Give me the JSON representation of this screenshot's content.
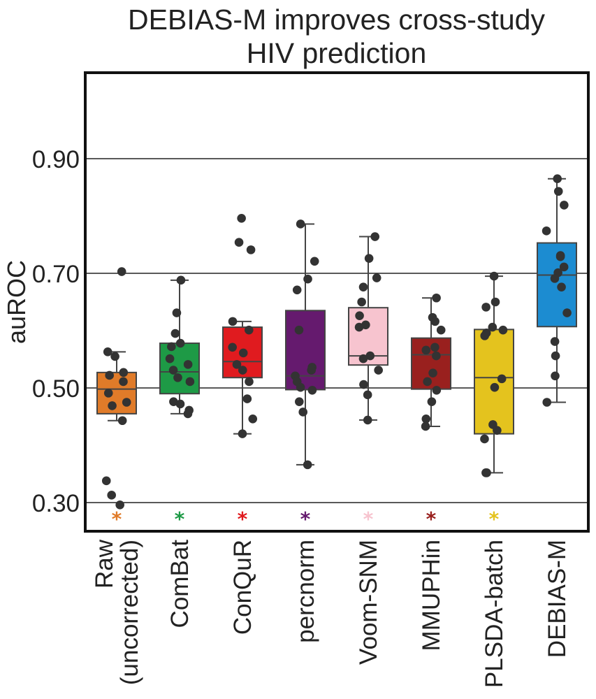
{
  "title_lines": [
    "DEBIAS-M improves cross-study",
    "HIV prediction"
  ],
  "chart_data": {
    "type": "box",
    "title": "DEBIAS-M improves cross-study HIV prediction",
    "xlabel": "",
    "ylabel": "auROC",
    "ylim": [
      0.25,
      1.05
    ],
    "yticks": [
      0.3,
      0.5,
      0.7,
      0.9
    ],
    "ytick_labels": [
      "0.30",
      "0.50",
      "0.70",
      "0.90"
    ],
    "grid": "horizontal",
    "categories": [
      {
        "name": "raw",
        "label_lines": [
          "Raw",
          "(uncorrected)"
        ],
        "color": "#E07B29",
        "significance": "*",
        "box": {
          "q1": 0.455,
          "median": 0.498,
          "q3": 0.527,
          "whisker_low": 0.443,
          "whisker_high": 0.563
        },
        "points": [
          0.703,
          0.563,
          0.555,
          0.527,
          0.522,
          0.511,
          0.491,
          0.475,
          0.469,
          0.443,
          0.338,
          0.313,
          0.296
        ]
      },
      {
        "name": "combat",
        "label_lines": [
          "ComBat"
        ],
        "color": "#1E9A46",
        "significance": "*",
        "box": {
          "q1": 0.49,
          "median": 0.528,
          "q3": 0.578,
          "whisker_low": 0.455,
          "whisker_high": 0.688
        },
        "points": [
          0.688,
          0.631,
          0.595,
          0.578,
          0.572,
          0.551,
          0.541,
          0.531,
          0.518,
          0.511,
          0.476,
          0.472,
          0.461,
          0.455
        ]
      },
      {
        "name": "conqur",
        "label_lines": [
          "ConQuR"
        ],
        "color": "#E01B1F",
        "significance": "*",
        "box": {
          "q1": 0.518,
          "median": 0.546,
          "q3": 0.606,
          "whisker_low": 0.42,
          "whisker_high": 0.616
        },
        "points": [
          0.796,
          0.754,
          0.741,
          0.616,
          0.601,
          0.571,
          0.561,
          0.541,
          0.531,
          0.511,
          0.481,
          0.446,
          0.42
        ]
      },
      {
        "name": "percnorm",
        "label_lines": [
          "percnorm"
        ],
        "color": "#651A6E",
        "significance": "*",
        "box": {
          "q1": 0.497,
          "median": 0.521,
          "q3": 0.635,
          "whisker_low": 0.366,
          "whisker_high": 0.786
        },
        "points": [
          0.786,
          0.721,
          0.69,
          0.671,
          0.601,
          0.536,
          0.531,
          0.521,
          0.511,
          0.501,
          0.496,
          0.476,
          0.458,
          0.366
        ]
      },
      {
        "name": "voom-snm",
        "label_lines": [
          "Voom-SNM"
        ],
        "color": "#F7C4CF",
        "significance": "*",
        "box": {
          "q1": 0.54,
          "median": 0.556,
          "q3": 0.64,
          "whisker_low": 0.444,
          "whisker_high": 0.764
        },
        "points": [
          0.764,
          0.726,
          0.692,
          0.676,
          0.65,
          0.626,
          0.61,
          0.606,
          0.556,
          0.551,
          0.531,
          0.506,
          0.488,
          0.444
        ]
      },
      {
        "name": "mmuphin",
        "label_lines": [
          "MMUPHin"
        ],
        "color": "#99201E",
        "significance": "*",
        "box": {
          "q1": 0.498,
          "median": 0.558,
          "q3": 0.587,
          "whisker_low": 0.433,
          "whisker_high": 0.657
        },
        "points": [
          0.657,
          0.623,
          0.616,
          0.601,
          0.571,
          0.566,
          0.556,
          0.526,
          0.511,
          0.496,
          0.476,
          0.446,
          0.433
        ]
      },
      {
        "name": "plsda-batch",
        "label_lines": [
          "PLSDA-batch"
        ],
        "color": "#E4C31E",
        "significance": "*",
        "box": {
          "q1": 0.42,
          "median": 0.518,
          "q3": 0.602,
          "whisker_low": 0.352,
          "whisker_high": 0.695
        },
        "points": [
          0.695,
          0.65,
          0.641,
          0.606,
          0.601,
          0.596,
          0.591,
          0.516,
          0.501,
          0.436,
          0.426,
          0.411,
          0.352,
          0.352
        ]
      },
      {
        "name": "debias-m",
        "label_lines": [
          "DEBIAS-M"
        ],
        "color": "#1C8CD1",
        "significance": "",
        "box": {
          "q1": 0.607,
          "median": 0.697,
          "q3": 0.753,
          "whisker_low": 0.475,
          "whisker_high": 0.865
        },
        "points": [
          0.865,
          0.843,
          0.819,
          0.774,
          0.731,
          0.729,
          0.711,
          0.701,
          0.691,
          0.676,
          0.631,
          0.581,
          0.556,
          0.521,
          0.475
        ]
      }
    ]
  }
}
